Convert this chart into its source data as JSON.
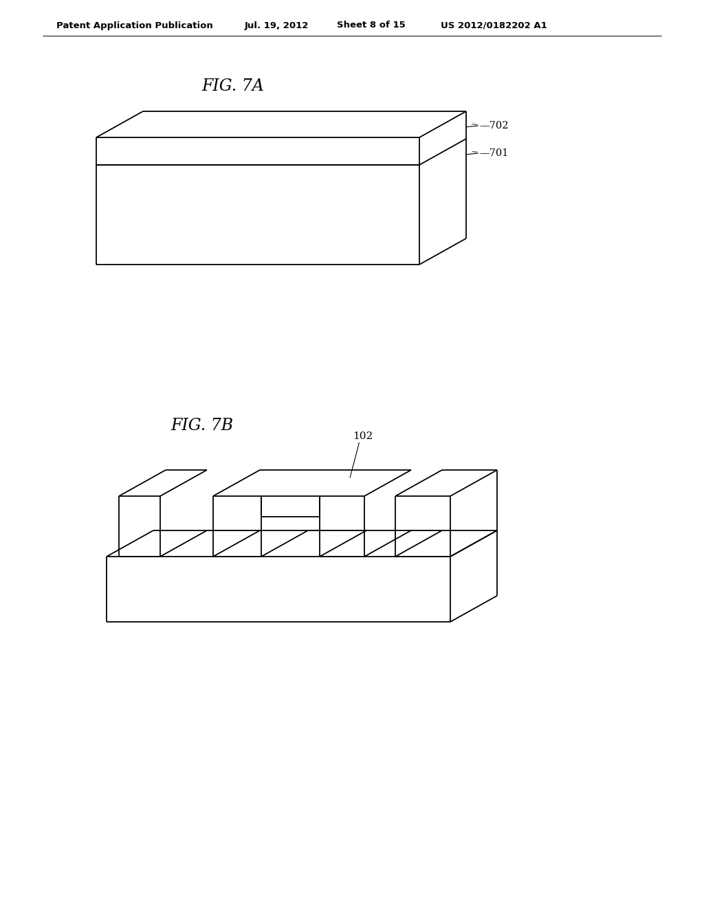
{
  "bg_color": "#ffffff",
  "line_color": "#000000",
  "line_width": 1.3,
  "header_text": "Patent Application Publication",
  "header_date": "Jul. 19, 2012",
  "header_sheet": "Sheet 8 of 15",
  "header_patent": "US 2012/0182202 A1",
  "fig7a_label": "FIG. 7A",
  "fig7b_label": "FIG. 7B",
  "label_702": "702",
  "label_701": "701",
  "label_102": "102"
}
